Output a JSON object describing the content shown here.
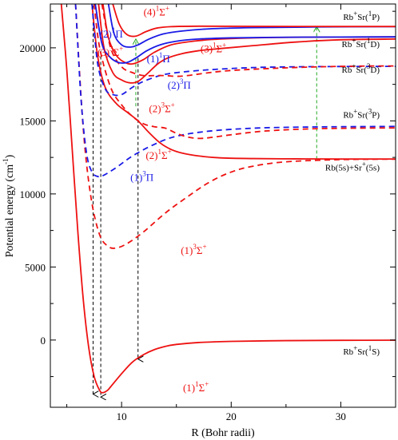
{
  "chart_data": {
    "type": "line",
    "xlabel": "R (Bohr radii)",
    "ylabel": "Potential energy (cm",
    "ylabel_sup": "-1",
    "xlim": [
      3.5,
      35
    ],
    "ylim": [
      -4600,
      23000
    ],
    "x_ticks": [
      10,
      20,
      30
    ],
    "y_ticks": [
      0,
      5000,
      10000,
      15000,
      20000
    ],
    "colors": {
      "singlet_sigma": "#ee1111",
      "pi_states": "#1a1ae6",
      "triplet_sigma": "#ee1111",
      "arrow_black": "#000000",
      "arrow_green": "#22aa22"
    },
    "series": [
      {
        "name": "(1)1Σ+",
        "label_pre": "(1)",
        "label_sup": "1",
        "label_base": "Σ",
        "label_sup2": "+",
        "color": "#ee1111",
        "style": "solid",
        "points": [
          [
            4.5,
            23000
          ],
          [
            5,
            18500
          ],
          [
            5.5,
            13000
          ],
          [
            6,
            7500
          ],
          [
            6.5,
            2800
          ],
          [
            7,
            -500
          ],
          [
            7.5,
            -2500
          ],
          [
            8,
            -3450
          ],
          [
            8.3,
            -3600
          ],
          [
            8.7,
            -3450
          ],
          [
            9,
            -3200
          ],
          [
            10,
            -2300
          ],
          [
            11,
            -1500
          ],
          [
            12,
            -1000
          ],
          [
            13,
            -650
          ],
          [
            14,
            -430
          ],
          [
            15,
            -300
          ],
          [
            17,
            -170
          ],
          [
            20,
            -90
          ],
          [
            25,
            -40
          ],
          [
            30,
            -20
          ],
          [
            35,
            -10
          ]
        ],
        "label_x": 15.6,
        "label_y": -3500
      },
      {
        "name": "(1)3Σ+",
        "label_pre": "(1)",
        "label_sup": "3",
        "label_base": "Σ",
        "label_sup2": "+",
        "color": "#ee1111",
        "style": "dashed",
        "points": [
          [
            5.8,
            23000
          ],
          [
            6.5,
            14500
          ],
          [
            7.2,
            9800
          ],
          [
            8,
            7200
          ],
          [
            8.8,
            6400
          ],
          [
            9.5,
            6300
          ],
          [
            10.5,
            6600
          ],
          [
            12,
            7400
          ],
          [
            14,
            8700
          ],
          [
            16,
            9800
          ],
          [
            18,
            10800
          ],
          [
            20,
            11500
          ],
          [
            22,
            11900
          ],
          [
            25,
            12200
          ],
          [
            30,
            12350
          ],
          [
            35,
            12380
          ]
        ],
        "label_x": 15.4,
        "label_y": 5900
      },
      {
        "name": "(2)1Σ+",
        "label_pre": "(2)",
        "label_sup": "1",
        "label_base": "Σ",
        "label_sup2": "+",
        "color": "#ee1111",
        "style": "solid",
        "points": [
          [
            7.3,
            23000
          ],
          [
            7.8,
            19500
          ],
          [
            8.5,
            17300
          ],
          [
            9.5,
            16200
          ],
          [
            10.5,
            15600
          ],
          [
            11.5,
            15000
          ],
          [
            12.5,
            14200
          ],
          [
            13.5,
            13500
          ],
          [
            14.5,
            13050
          ],
          [
            15.5,
            12800
          ],
          [
            17,
            12600
          ],
          [
            19,
            12470
          ],
          [
            22,
            12420
          ],
          [
            26,
            12400
          ],
          [
            30,
            12390
          ],
          [
            35,
            12390
          ]
        ],
        "label_x": 12.2,
        "label_y": 12400
      },
      {
        "name": "(1)3Π",
        "label_pre": "(1)",
        "label_sup": "3",
        "label_base": "Π",
        "label_sup2": "",
        "color": "#1a1ae6",
        "style": "dashed",
        "points": [
          [
            5.8,
            23000
          ],
          [
            6.3,
            16500
          ],
          [
            6.8,
            12800
          ],
          [
            7.3,
            11500
          ],
          [
            7.8,
            11200
          ],
          [
            8.3,
            11250
          ],
          [
            9.5,
            11800
          ],
          [
            11,
            12600
          ],
          [
            13,
            13400
          ],
          [
            15,
            13950
          ],
          [
            18,
            14300
          ],
          [
            22,
            14500
          ],
          [
            26,
            14570
          ],
          [
            30,
            14600
          ],
          [
            35,
            14620
          ]
        ],
        "label_x": 10.8,
        "label_y": 10900
      },
      {
        "name": "(2)3Σ+",
        "label_pre": "(2)",
        "label_sup": "3",
        "label_base": "Σ",
        "label_sup2": "+",
        "color": "#ee1111",
        "style": "dashed",
        "points": [
          [
            7.5,
            23000
          ],
          [
            8,
            20000
          ],
          [
            9,
            17300
          ],
          [
            10,
            16100
          ],
          [
            11,
            15300
          ],
          [
            12,
            14800
          ],
          [
            13,
            14600
          ],
          [
            14,
            14500
          ],
          [
            15,
            14150
          ],
          [
            16,
            13900
          ],
          [
            17,
            13800
          ],
          [
            18,
            13850
          ],
          [
            20,
            14050
          ],
          [
            23,
            14300
          ],
          [
            27,
            14450
          ],
          [
            31,
            14500
          ],
          [
            35,
            14520
          ]
        ],
        "label_x": 12.5,
        "label_y": 15600
      },
      {
        "name": "(2)3Π",
        "label_pre": "(2)",
        "label_sup": "3",
        "label_base": "Π",
        "label_sup2": "",
        "color": "#1a1ae6",
        "style": "dashed",
        "points": [
          [
            7.3,
            23000
          ],
          [
            7.8,
            19000
          ],
          [
            8.5,
            17200
          ],
          [
            9.2,
            16800
          ],
          [
            10,
            16800
          ],
          [
            11,
            17300
          ],
          [
            12,
            17700
          ],
          [
            13.5,
            18100
          ],
          [
            15,
            18300
          ],
          [
            18,
            18500
          ],
          [
            22,
            18650
          ],
          [
            26,
            18700
          ],
          [
            30,
            18720
          ],
          [
            35,
            18730
          ]
        ],
        "label_x": 14.2,
        "label_y": 17200
      },
      {
        "name": "(3)3Σ+ dashed",
        "color": "#ee1111",
        "style": "dashed",
        "points": [
          [
            8.2,
            23000
          ],
          [
            9,
            20000
          ],
          [
            10,
            18700
          ],
          [
            11,
            18300
          ],
          [
            12,
            18100
          ],
          [
            13,
            18100
          ],
          [
            14,
            18100
          ],
          [
            15,
            18050
          ],
          [
            16,
            18100
          ],
          [
            18,
            18300
          ],
          [
            20,
            18450
          ],
          [
            24,
            18600
          ],
          [
            28,
            18700
          ],
          [
            32,
            18750
          ],
          [
            35,
            18760
          ]
        ]
      },
      {
        "name": "(3)1Σ+",
        "label_pre": "(3)",
        "label_sup": "1",
        "label_base": "Σ",
        "label_sup2": "+",
        "color": "#ee1111",
        "style": "solid",
        "points": [
          [
            7.9,
            23000
          ],
          [
            8.4,
            20000
          ],
          [
            9.2,
            18300
          ],
          [
            10,
            17800
          ],
          [
            10.8,
            17600
          ],
          [
            11.5,
            17700
          ],
          [
            12.3,
            18200
          ],
          [
            13.3,
            18900
          ],
          [
            14.2,
            19300
          ],
          [
            15.5,
            19600
          ],
          [
            17,
            19800
          ],
          [
            19,
            19950
          ],
          [
            22,
            20150
          ],
          [
            26,
            20400
          ],
          [
            30,
            20550
          ],
          [
            35,
            20600
          ]
        ],
        "label_x": 17.2,
        "label_y": 19700
      },
      {
        "name": "(3)3Σ+ solid",
        "color": "#ee1111",
        "style": "solid",
        "points": [
          [
            8.3,
            23000
          ],
          [
            8.8,
            20700
          ],
          [
            9.5,
            19500
          ],
          [
            10.3,
            19000
          ],
          [
            11,
            18900
          ],
          [
            12,
            19200
          ],
          [
            13,
            19700
          ],
          [
            14.5,
            20200
          ],
          [
            16.5,
            20450
          ],
          [
            19,
            20600
          ],
          [
            23,
            20700
          ],
          [
            28,
            20730
          ],
          [
            35,
            20750
          ]
        ]
      },
      {
        "name": "(2)1Π",
        "label_pre": "(2)",
        "label_sup": "1",
        "label_base": "Π",
        "label_sup2": "",
        "color": "#1a1ae6",
        "style": "solid",
        "points": [
          [
            7.6,
            23000
          ],
          [
            8.2,
            20300
          ],
          [
            8.9,
            19400
          ],
          [
            9.7,
            19000
          ],
          [
            10.5,
            19000
          ],
          [
            11.3,
            19300
          ],
          [
            12.3,
            19800
          ],
          [
            13.5,
            20200
          ],
          [
            15,
            20450
          ],
          [
            17,
            20600
          ],
          [
            20,
            20680
          ],
          [
            24,
            20720
          ],
          [
            30,
            20740
          ],
          [
            35,
            20750
          ]
        ],
        "label_x": 8.0,
        "label_y": 20700
      },
      {
        "name": "(1)1Π",
        "label_pre": "(1)",
        "label_sup": "1",
        "label_base": "Π",
        "label_sup2": "",
        "color": "#1a1ae6",
        "style": "solid",
        "points": [
          [
            8.8,
            23000
          ],
          [
            9.3,
            21000
          ],
          [
            10,
            20200
          ],
          [
            10.8,
            20050
          ],
          [
            11.5,
            20200
          ],
          [
            12.5,
            20600
          ],
          [
            13.8,
            20950
          ],
          [
            15.5,
            21150
          ],
          [
            18,
            21300
          ],
          [
            22,
            21380
          ],
          [
            28,
            21430
          ],
          [
            35,
            21450
          ]
        ],
        "label_x": 12.3,
        "label_y": 19000
      },
      {
        "name": "(4)1Σ+",
        "label_pre": "(4)",
        "label_sup": "1",
        "label_base": "Σ",
        "label_sup2": "+",
        "color": "#ee1111",
        "style": "solid",
        "points": [
          [
            9.2,
            23000
          ],
          [
            9.8,
            21600
          ],
          [
            10.5,
            20900
          ],
          [
            11.3,
            20800
          ],
          [
            12.2,
            21100
          ],
          [
            13.2,
            21350
          ],
          [
            14.5,
            21450
          ],
          [
            17,
            21480
          ],
          [
            22,
            21470
          ],
          [
            30,
            21460
          ],
          [
            35,
            21460
          ]
        ],
        "label_x": 12.0,
        "label_y": 22200
      }
    ],
    "extra_labels": [
      {
        "pre": "(3)",
        "sup": "3",
        "base": "Σ",
        "sup2": "+",
        "color": "#ee1111",
        "x": 7.8,
        "y": 19450
      }
    ],
    "asymptotes": [
      {
        "text": "Rb+Sr(1P)",
        "parts": [
          "Rb",
          "+",
          "+Sr(",
          "1",
          "P)"
        ],
        "y": 21900
      },
      {
        "text": "Rb+Sr(1D)",
        "parts": [
          "Rb",
          "+",
          "+Sr(",
          "1",
          "D)"
        ],
        "y": 20050
      },
      {
        "text": "Rb+Sr(3D)",
        "parts": [
          "Rb",
          "+",
          "+Sr(",
          "3",
          "D)"
        ],
        "y": 18300
      },
      {
        "text": "Rb+Sr(3P)",
        "parts": [
          "Rb",
          "+",
          "+Sr(",
          "3",
          "P)"
        ],
        "y": 15200
      },
      {
        "text": "Rb(5s)+Sr+(5s)",
        "parts": [
          "Rb(5s)+Sr",
          "+",
          "(5s)",
          "",
          ""
        ],
        "y": 11600
      },
      {
        "text": "Rb+Sr(1S)",
        "parts": [
          "Rb",
          "+",
          "+Sr(",
          "1",
          "S)"
        ],
        "y": -1000
      }
    ],
    "arrows": [
      {
        "x": 7.4,
        "y_from": 22900,
        "y_to": -3700,
        "color": "#000000"
      },
      {
        "x": 8.1,
        "y_from": 19800,
        "y_to": -3900,
        "color": "#000000"
      },
      {
        "x": 11.5,
        "y_from": 19300,
        "y_to": -1300,
        "color": "#000000"
      },
      {
        "x": 11.3,
        "y_from": 16000,
        "y_to": 20600,
        "color": "#22aa22"
      },
      {
        "x": 27.8,
        "y_from": 12380,
        "y_to": 21450,
        "color": "#22aa22"
      }
    ]
  }
}
